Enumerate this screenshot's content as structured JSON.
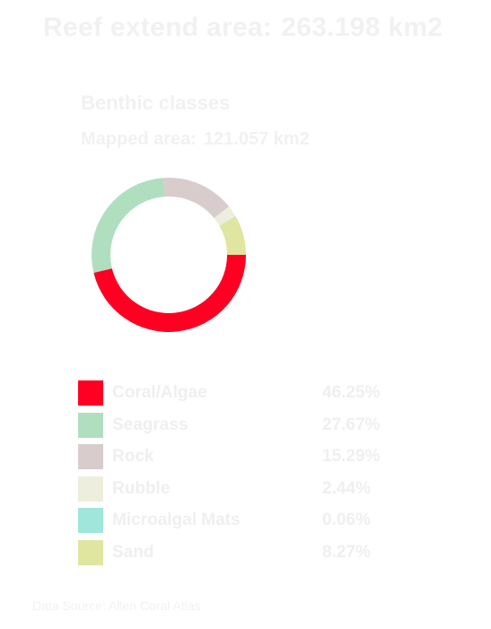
{
  "header": {
    "label": "Reef extend area:",
    "value": "263.198 km2"
  },
  "chart_data": {
    "type": "pie",
    "title": "Benthic classes",
    "subtitle_label": "Mapped area:",
    "subtitle_value": "121.057 km2",
    "donut": true,
    "categories": [
      "Coral/Algae",
      "Seagrass",
      "Rock",
      "Rubble",
      "Microalgal Mats",
      "Sand"
    ],
    "values": [
      46.25,
      27.67,
      15.29,
      2.44,
      0.06,
      8.27
    ],
    "value_labels": [
      "46.25%",
      "27.67%",
      "15.29%",
      "2.44%",
      "0.06%",
      "8.27%"
    ],
    "colors": [
      "#ff0022",
      "#b0dfc0",
      "#d9cccc",
      "#eeeedd",
      "#a0e6da",
      "#e0e5a0"
    ],
    "legend_position": "bottom"
  },
  "footer": {
    "source": "Data Source: Allen Coral Atlas"
  }
}
